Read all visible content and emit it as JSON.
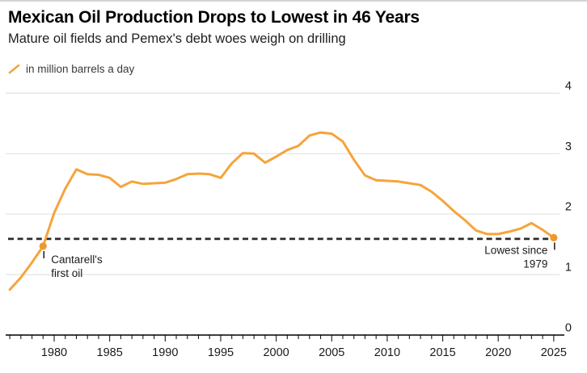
{
  "header": {
    "title": "Mexican Oil Production Drops to Lowest in 46 Years",
    "subtitle": "Mature oil fields and Pemex's debt woes weigh on drilling"
  },
  "legend": {
    "label": "in million barrels a day"
  },
  "colors": {
    "line": "#F5A43B",
    "marker": "#EE992F",
    "grid": "#E3E3E3",
    "axis": "#000000",
    "tick": "#1A1A1A",
    "dashed_line": "#2B2B2B",
    "text": "#1A1A1A"
  },
  "chart_data": {
    "type": "line",
    "title": "Mexican Oil Production Drops to Lowest in 46 Years",
    "subtitle": "Mature oil fields and Pemex's debt woes weigh on drilling",
    "unit_label": "in million barrels a day",
    "grid": "horizontal",
    "y_axis_side": "right",
    "legend_position": "top-left",
    "ylim": [
      0,
      4
    ],
    "y_ticks": [
      0,
      1,
      2,
      3,
      4
    ],
    "x_labeled_ticks": [
      1980,
      1985,
      1990,
      1995,
      2000,
      2005,
      2010,
      2015,
      2020,
      2025
    ],
    "x": [
      1976,
      1977,
      1978,
      1979,
      1980,
      1981,
      1982,
      1983,
      1984,
      1985,
      1986,
      1987,
      1988,
      1989,
      1990,
      1991,
      1992,
      1993,
      1994,
      1995,
      1996,
      1997,
      1998,
      1999,
      2000,
      2001,
      2002,
      2003,
      2004,
      2005,
      2006,
      2007,
      2008,
      2009,
      2010,
      2011,
      2012,
      2013,
      2014,
      2015,
      2016,
      2017,
      2018,
      2019,
      2020,
      2021,
      2022,
      2023,
      2024,
      2025
    ],
    "values": [
      0.75,
      0.95,
      1.2,
      1.47,
      2.02,
      2.42,
      2.74,
      2.66,
      2.65,
      2.6,
      2.45,
      2.54,
      2.5,
      2.51,
      2.52,
      2.58,
      2.66,
      2.67,
      2.66,
      2.6,
      2.84,
      3.01,
      3.0,
      2.85,
      2.95,
      3.06,
      3.13,
      3.3,
      3.35,
      3.33,
      3.2,
      2.9,
      2.64,
      2.56,
      2.55,
      2.54,
      2.51,
      2.48,
      2.37,
      2.22,
      2.05,
      1.9,
      1.73,
      1.67,
      1.67,
      1.71,
      1.76,
      1.85,
      1.74,
      1.61
    ],
    "reference_line": {
      "value": 1.59,
      "style": "dashed"
    },
    "annotations": [
      {
        "year": 1979,
        "value": 1.47,
        "lines": [
          "Cantarell's",
          "first oil"
        ],
        "align": "left"
      },
      {
        "year": 2025,
        "value": 1.61,
        "lines": [
          "Lowest since",
          "1979"
        ],
        "align": "right"
      }
    ]
  }
}
